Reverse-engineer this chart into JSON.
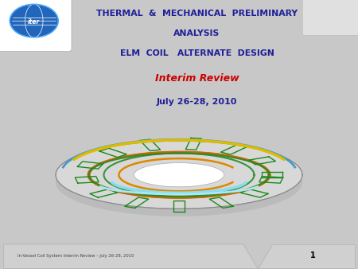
{
  "title_line1": "THERMAL  &  MECHANICAL  PRELIMINARY",
  "title_line2": "ANALYSIS",
  "title_line3": "ELM  COIL   ALTERNATE  DESIGN",
  "subtitle_line1": "Interim Review",
  "subtitle_line2": "July 26-28, 2010",
  "footer_text": "In-Vessel Coil System Interim Review – July 26-28, 2010",
  "page_number": "1",
  "bg_color": "#c8c8c8",
  "slide_bg": "#ffffff",
  "title_color": "#1f1f9a",
  "subtitle_color": "#cc0000",
  "date_color": "#1f1f9a",
  "footer_color": "#444444",
  "title_fontsize": 7.8,
  "subtitle_fontsize": 9.0,
  "date_fontsize": 8.0,
  "footer_fontsize": 3.8
}
